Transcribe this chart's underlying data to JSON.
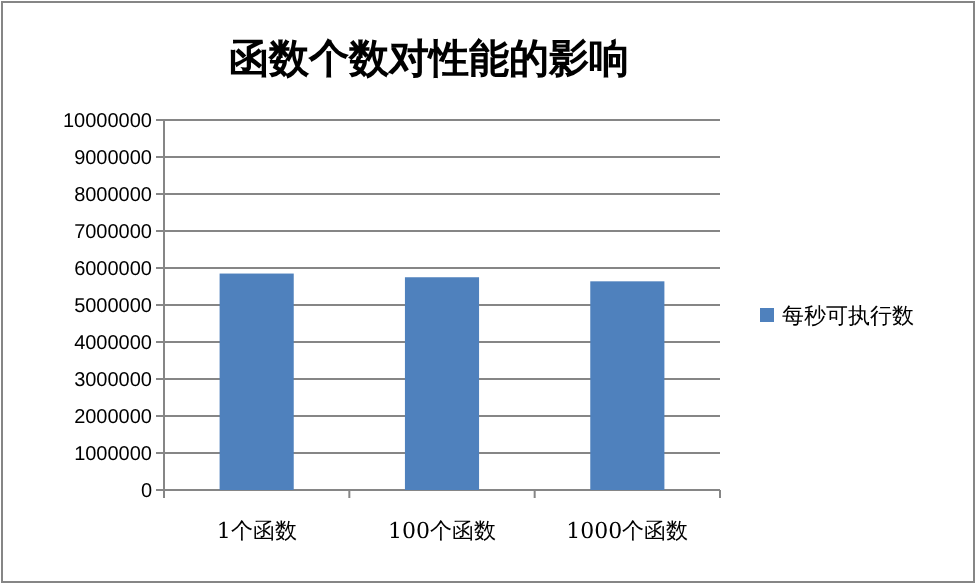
{
  "chart_data": {
    "type": "bar",
    "title": "函数个数对性能的影响",
    "categories": [
      "1个函数",
      "100个函数",
      "1000个函数"
    ],
    "series": [
      {
        "name": "每秒可执行数",
        "color": "#4f81bd",
        "values": [
          5850000,
          5750000,
          5640000
        ]
      }
    ],
    "ylim": [
      0,
      10000000
    ],
    "yticks": [
      0,
      1000000,
      2000000,
      3000000,
      4000000,
      5000000,
      6000000,
      7000000,
      8000000,
      9000000,
      10000000
    ],
    "grid": "y",
    "legend": "right"
  }
}
